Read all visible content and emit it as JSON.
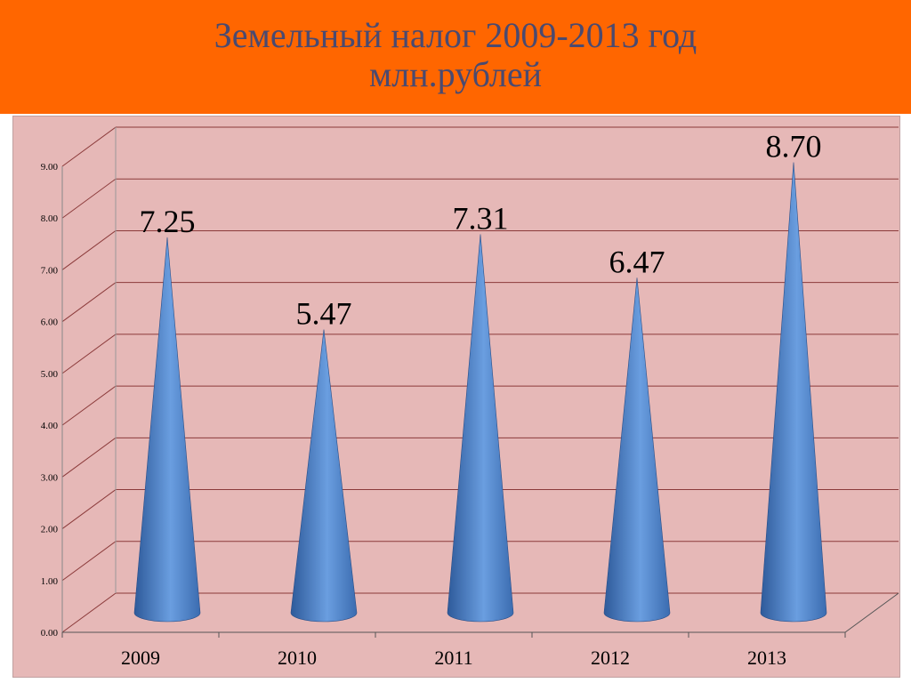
{
  "header": {
    "title_line1": "Земельный налог 2009-2013 год",
    "title_line2": "млн.рублей",
    "background": "#ff6600",
    "title_color": "#4a4a70"
  },
  "chart_data": {
    "type": "bar",
    "bar_shape": "cone",
    "categories": [
      "2009",
      "2010",
      "2011",
      "2012",
      "2013"
    ],
    "values": [
      7.25,
      5.47,
      7.31,
      6.47,
      8.7
    ],
    "data_labels": [
      "7.25",
      "5.47",
      "7.31",
      "6.47",
      "8.70"
    ],
    "ylim": [
      0,
      9
    ],
    "yticks": [
      "0.00",
      "1.00",
      "2.00",
      "3.00",
      "4.00",
      "5.00",
      "6.00",
      "7.00",
      "8.00",
      "9.00"
    ],
    "grid": true,
    "legend": "none",
    "colors": {
      "plot_background": "#e6b8b7",
      "bar": "#4f81bd",
      "gridline": "#8b3a3a"
    }
  }
}
